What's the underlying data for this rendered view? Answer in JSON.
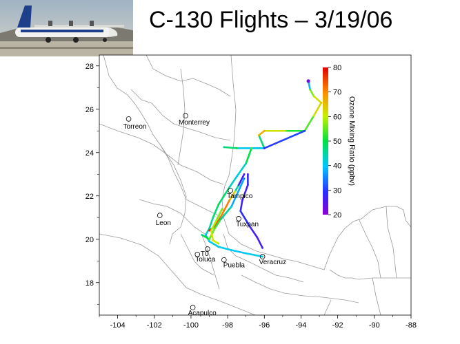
{
  "title": "C-130 Flights – 3/19/06",
  "photo": {
    "icon": "c130-aircraft-photo"
  },
  "map": {
    "lon_range": [
      -105,
      -88
    ],
    "lat_range": [
      16.5,
      28.5
    ],
    "x_ticks": [
      "-104",
      "-102",
      "-100",
      "-98",
      "-96",
      "-94",
      "-92",
      "-90",
      "-88"
    ],
    "x_tick_values": [
      -104,
      -102,
      -100,
      -98,
      -96,
      -94,
      -92,
      -90,
      -88
    ],
    "y_ticks": [
      "28",
      "26",
      "24",
      "22",
      "20",
      "18"
    ],
    "y_tick_values": [
      28,
      26,
      24,
      22,
      20,
      18
    ],
    "cities": [
      {
        "name": "Torreon",
        "lon": -103.4,
        "lat": 25.55
      },
      {
        "name": "Monterrey",
        "lon": -100.3,
        "lat": 25.7
      },
      {
        "name": "Leon",
        "lon": -101.7,
        "lat": 21.1
      },
      {
        "name": "Tampico",
        "lon": -97.85,
        "lat": 22.25
      },
      {
        "name": "Tuxpan",
        "lon": -97.4,
        "lat": 20.95
      },
      {
        "name": "Toluca",
        "lon": -99.65,
        "lat": 19.3
      },
      {
        "name": "Puebla",
        "lon": -98.2,
        "lat": 19.05
      },
      {
        "name": "Veracruz",
        "lon": -96.1,
        "lat": 19.2
      },
      {
        "name": "Acapulco",
        "lon": -99.9,
        "lat": 16.85
      },
      {
        "name": "T0",
        "lon": -99.1,
        "lat": 19.55
      }
    ]
  },
  "colorbar": {
    "label": "Ozone Mixing Ratio (ppbv)",
    "min": 20,
    "max": 80,
    "ticks": [
      "80",
      "70",
      "60",
      "50",
      "40",
      "30",
      "20"
    ],
    "tick_values": [
      80,
      70,
      60,
      50,
      40,
      30,
      20
    ]
  },
  "chart_data": {
    "type": "scatter",
    "xlabel": "",
    "ylabel": "",
    "xlim": [
      -105,
      -88
    ],
    "ylim": [
      16.5,
      28.5
    ],
    "color_variable": "Ozone Mixing Ratio (ppbv)",
    "tracks": [
      {
        "points": [
          [
            -93.6,
            27.3,
            22
          ],
          [
            -93.5,
            26.9,
            55
          ],
          [
            -93.3,
            26.6,
            58
          ],
          [
            -92.9,
            26.3,
            65
          ],
          [
            -93.3,
            25.7,
            60
          ],
          [
            -93.8,
            25.0,
            48
          ],
          [
            -94.8,
            25.0,
            55
          ],
          [
            -96.0,
            25.0,
            68
          ],
          [
            -96.3,
            24.8,
            65
          ],
          [
            -96.0,
            24.2,
            30
          ],
          [
            -97.5,
            24.2,
            50
          ],
          [
            -98.2,
            24.25,
            45
          ]
        ]
      },
      {
        "points": [
          [
            -93.8,
            25.0,
            30
          ],
          [
            -94.9,
            24.6,
            32
          ],
          [
            -96.0,
            24.2,
            28
          ],
          [
            -96.7,
            24.2,
            55
          ],
          [
            -97.0,
            23.5,
            45
          ],
          [
            -97.5,
            22.9,
            40
          ],
          [
            -97.9,
            22.4,
            45
          ],
          [
            -98.5,
            21.6,
            50
          ],
          [
            -98.8,
            21.0,
            45
          ],
          [
            -99.0,
            20.5,
            45
          ],
          [
            -99.2,
            20.2,
            40
          ],
          [
            -99.0,
            19.9,
            38
          ]
        ]
      },
      {
        "points": [
          [
            -97.1,
            23.0,
            25
          ],
          [
            -97.4,
            22.5,
            30
          ],
          [
            -97.6,
            22.2,
            60
          ],
          [
            -97.9,
            21.8,
            70
          ],
          [
            -98.4,
            21.0,
            72
          ],
          [
            -98.7,
            20.6,
            75
          ],
          [
            -99.0,
            20.4,
            78
          ]
        ]
      },
      {
        "points": [
          [
            -96.9,
            23.0,
            28
          ],
          [
            -96.9,
            22.5,
            28
          ],
          [
            -97.2,
            21.8,
            25
          ],
          [
            -97.3,
            21.3,
            30
          ],
          [
            -96.8,
            20.6,
            28
          ],
          [
            -96.4,
            20.1,
            25
          ],
          [
            -96.1,
            19.6,
            28
          ]
        ]
      },
      {
        "points": [
          [
            -97.1,
            22.8,
            35
          ],
          [
            -97.8,
            21.5,
            40
          ],
          [
            -98.4,
            20.9,
            50
          ],
          [
            -98.7,
            20.5,
            55
          ],
          [
            -99.0,
            20.0,
            55
          ],
          [
            -99.4,
            20.2,
            45
          ]
        ]
      },
      {
        "points": [
          [
            -99.0,
            19.9,
            40
          ],
          [
            -98.5,
            19.65,
            42
          ],
          [
            -97.8,
            19.5,
            40
          ],
          [
            -97.0,
            19.35,
            40
          ],
          [
            -96.1,
            19.2,
            42
          ]
        ]
      },
      {
        "points": [
          [
            -98.3,
            21.4,
            55
          ],
          [
            -98.6,
            20.9,
            58
          ],
          [
            -98.9,
            20.4,
            60
          ],
          [
            -98.8,
            19.95,
            62
          ],
          [
            -98.5,
            19.8,
            58
          ]
        ]
      }
    ]
  }
}
